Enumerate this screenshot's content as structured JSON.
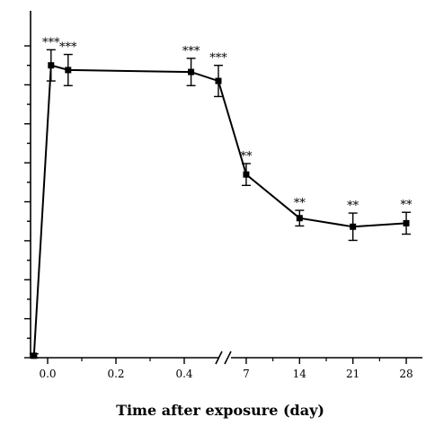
{
  "chart_data": {
    "type": "line",
    "title": "",
    "xlabel": "Time after exposure (day)",
    "ylabel": "",
    "x_axis": {
      "broken": true,
      "segments": [
        {
          "range": [
            -0.05,
            0.5
          ],
          "ticks": [
            "0.0",
            "0.2",
            "0.4"
          ]
        },
        {
          "range": [
            5,
            30
          ],
          "ticks": [
            "7",
            "14",
            "21",
            "28"
          ]
        }
      ]
    },
    "ylim": [
      0,
      8.9
    ],
    "y_tick_labels": [
      "",
      "",
      "",
      "",
      "",
      "",
      "",
      "",
      ""
    ],
    "grid": false,
    "legend": "none",
    "series": [
      {
        "marker": "square",
        "color": "#000000",
        "points": [
          {
            "x": -0.04,
            "y": 0.05,
            "err": 0.05,
            "sig": ""
          },
          {
            "x": 0.01,
            "y": 7.5,
            "err": 0.4,
            "sig": "***"
          },
          {
            "x": 0.06,
            "y": 7.38,
            "err": 0.4,
            "sig": "***"
          },
          {
            "x": 0.42,
            "y": 7.33,
            "err": 0.35,
            "sig": "***"
          },
          {
            "x": 0.5,
            "y": 7.1,
            "err": 0.4,
            "sig": "***"
          },
          {
            "x": 7,
            "y": 4.7,
            "err": 0.28,
            "sig": "**"
          },
          {
            "x": 14,
            "y": 3.58,
            "err": 0.2,
            "sig": "**"
          },
          {
            "x": 21,
            "y": 3.36,
            "err": 0.35,
            "sig": "**"
          },
          {
            "x": 28,
            "y": 3.45,
            "err": 0.28,
            "sig": "**"
          }
        ]
      }
    ]
  }
}
